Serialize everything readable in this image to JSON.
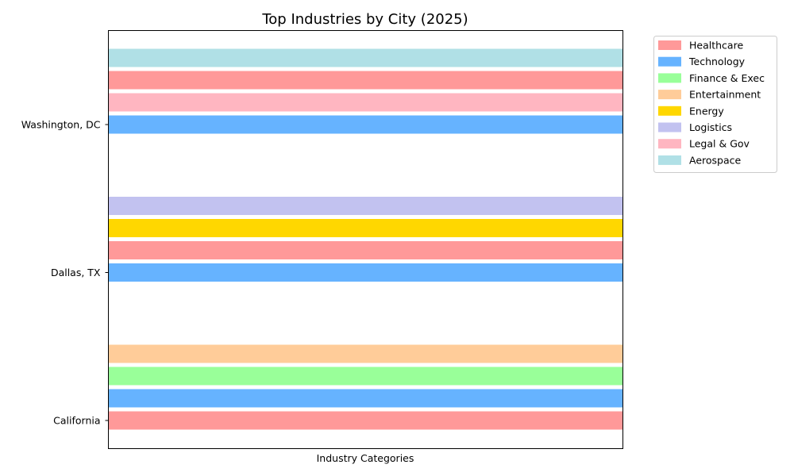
{
  "chart_data": {
    "type": "bar",
    "orientation": "horizontal",
    "title": "Top Industries by City (2025)",
    "xlabel": "Industry Categories",
    "ylabel": "",
    "categories": [
      "California",
      "Dallas, TX",
      "Washington, DC"
    ],
    "groups": [
      {
        "city": "California",
        "industries": [
          "Healthcare",
          "Technology",
          "Finance & Exec",
          "Entertainment"
        ]
      },
      {
        "city": "Dallas, TX",
        "industries": [
          "Technology",
          "Healthcare",
          "Energy",
          "Logistics"
        ]
      },
      {
        "city": "Washington, DC",
        "industries": [
          "Technology",
          "Legal & Gov",
          "Healthcare",
          "Aerospace"
        ]
      }
    ],
    "bar_value": 1,
    "legend": {
      "placement": "outside-top-right",
      "entries": [
        {
          "name": "Healthcare",
          "color": "#ff9999"
        },
        {
          "name": "Technology",
          "color": "#66b3ff"
        },
        {
          "name": "Finance & Exec",
          "color": "#99ff99"
        },
        {
          "name": "Entertainment",
          "color": "#ffcc99"
        },
        {
          "name": "Energy",
          "color": "#ffd700"
        },
        {
          "name": "Logistics",
          "color": "#c2c2f0"
        },
        {
          "name": "Legal & Gov",
          "color": "#ffb6c1"
        },
        {
          "name": "Aerospace",
          "color": "#b0e0e6"
        }
      ]
    },
    "grid": false
  }
}
